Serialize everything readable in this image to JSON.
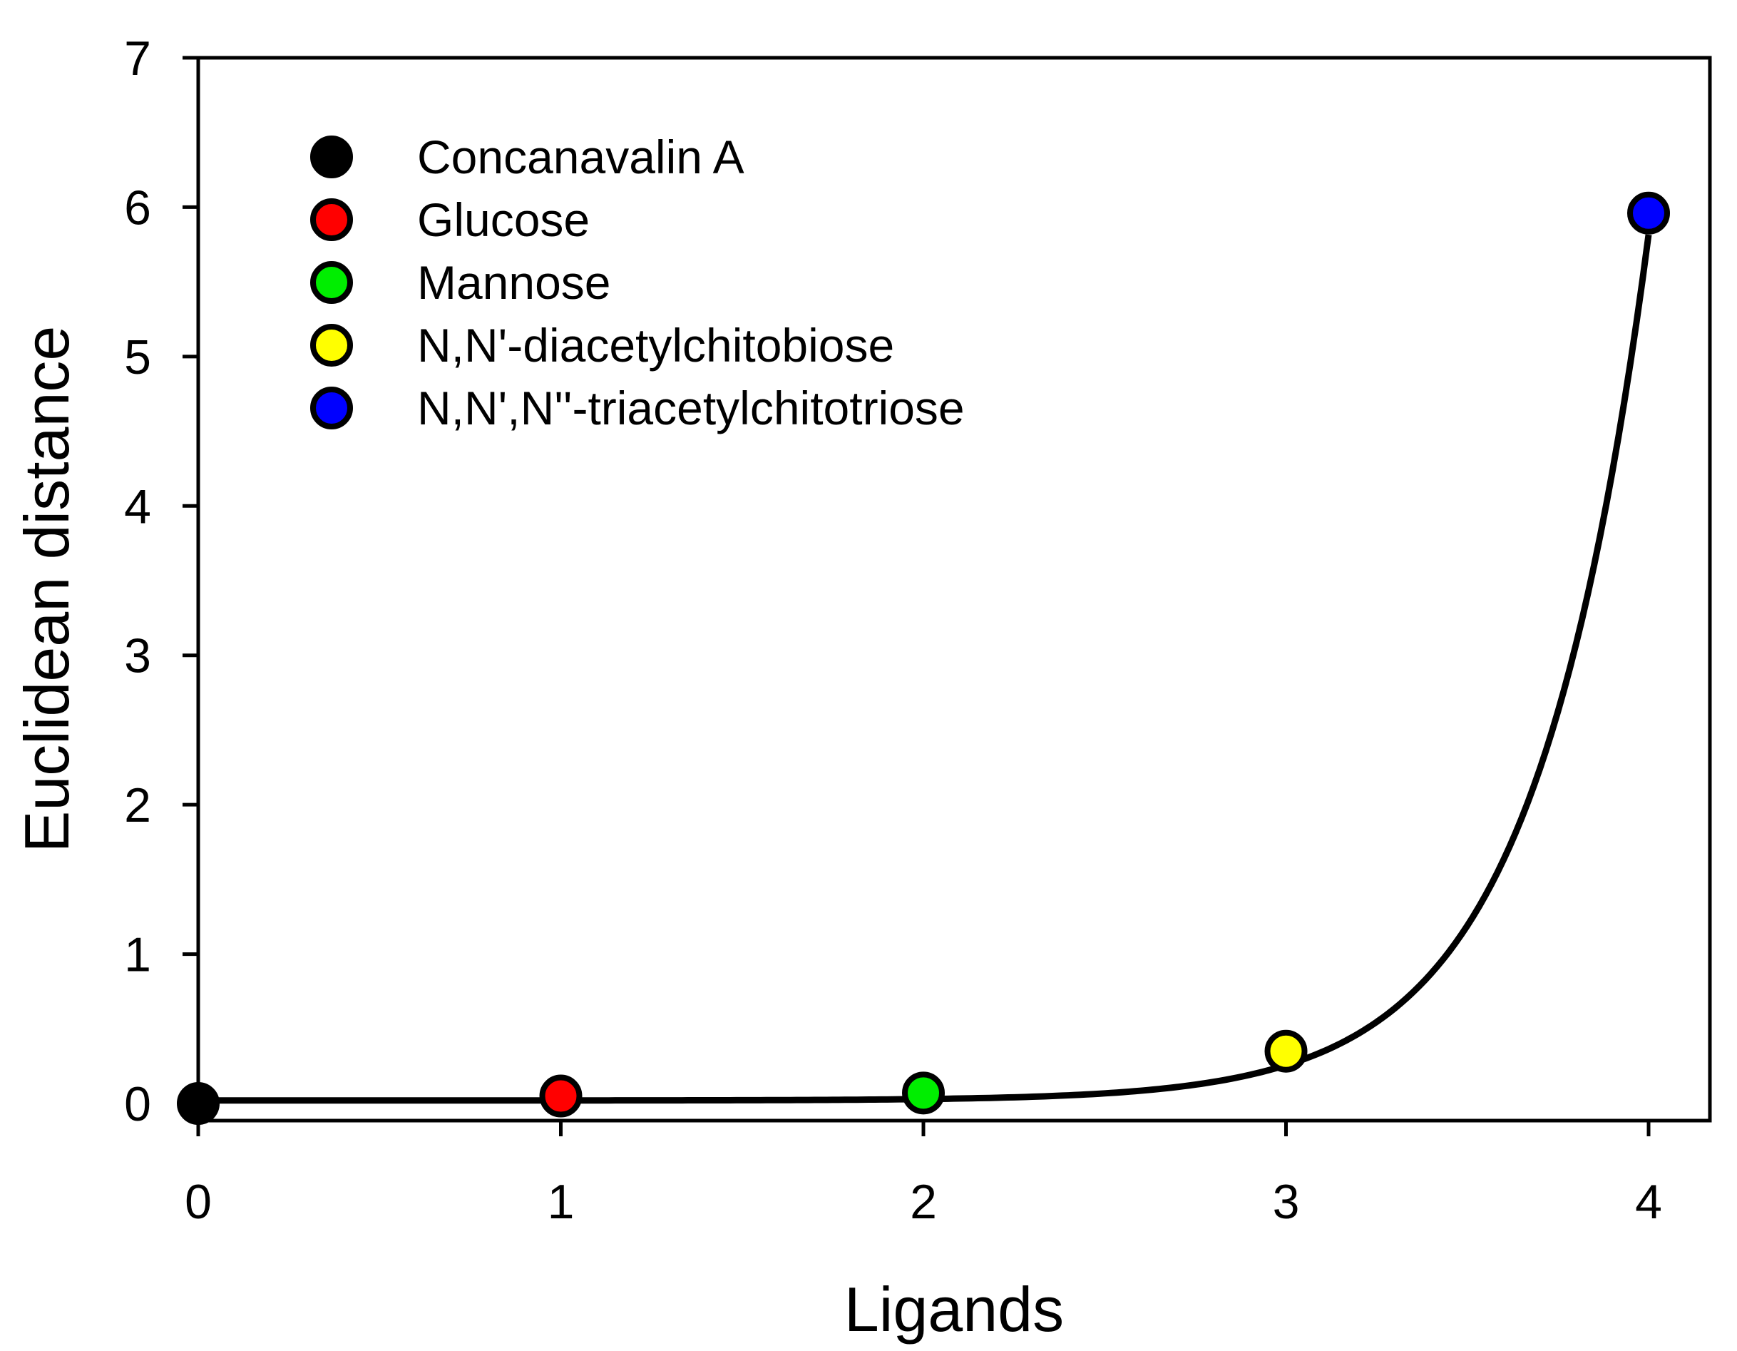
{
  "chart_data": {
    "type": "scatter",
    "title": "",
    "xlabel": "Ligands",
    "ylabel": "Euclidean distance",
    "xlim": [
      0,
      4.2
    ],
    "ylim": [
      -0.1,
      7
    ],
    "x_ticks": [
      "0",
      "1",
      "2",
      "3",
      "4"
    ],
    "y_ticks": [
      "0",
      "1",
      "2",
      "3",
      "4",
      "5",
      "6",
      "7"
    ],
    "grid": false,
    "legend_position": "top-left",
    "series": [
      {
        "name": "Concanavalin A",
        "x": 0,
        "y": 0.0,
        "color": "#000000"
      },
      {
        "name": "Glucose",
        "x": 1,
        "y": 0.05,
        "color": "#ff0000"
      },
      {
        "name": "Mannose",
        "x": 2,
        "y": 0.07,
        "color": "#00ee00"
      },
      {
        "name": "N,N'-diacetylchitobiose",
        "x": 3,
        "y": 0.35,
        "color": "#ffff00"
      },
      {
        "name": "N,N',N''-triacetylchitotriose",
        "x": 4,
        "y": 5.96,
        "color": "#0000ff"
      }
    ],
    "fit_curve": {
      "type": "exponential",
      "equation": "y = y0 + a*exp(b*x)",
      "y0": 0.02,
      "a": 1.6e-05,
      "b": 3.2,
      "x_range": [
        0,
        4
      ],
      "color": "#000000"
    }
  }
}
